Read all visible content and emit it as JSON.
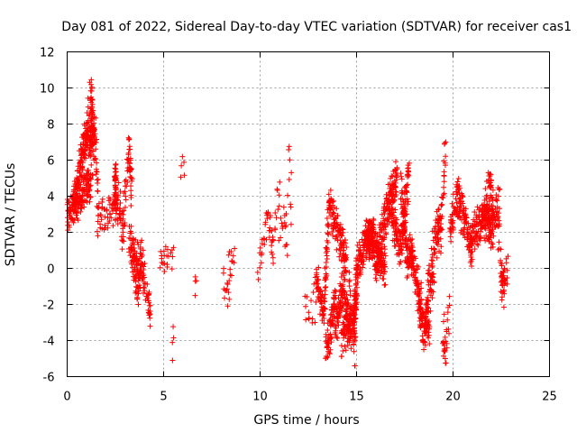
{
  "chart_data": {
    "type": "scatter",
    "title": "Day 081 of 2022, Sidereal Day-to-day VTEC variation (SDTVAR) for receiver cas1",
    "xlabel": "GPS time / hours",
    "ylabel": "SDTVAR / TECUs",
    "xlim": [
      0,
      25
    ],
    "ylim": [
      -6,
      12
    ],
    "xticks": [
      "0",
      "5",
      "10",
      "15",
      "20",
      "25"
    ],
    "yticks": [
      "-6",
      "-4",
      "-2",
      "0",
      "2",
      "4",
      "6",
      "8",
      "10",
      "12"
    ],
    "grid": true,
    "marker": "+",
    "color": "#ff0000",
    "series": [
      {
        "name": "SDTVAR",
        "segments": [
          [
            0.0,
            3.0,
            0.6,
            3.8,
            1.2,
            4.8,
            0.6,
            2.4,
            0.7,
            2.4,
            1.0,
            3.2
          ],
          [
            0.3,
            3.2,
            0.9,
            7.2,
            1.4,
            7.2,
            1.6,
            1.8,
            0.5,
            2.8,
            1.3,
            3.5
          ],
          [
            0.75,
            5.0,
            1.25,
            9.8,
            1.35,
            7.5,
            0.6,
            2.6,
            0.8,
            3.2,
            1.0,
            4.0
          ],
          [
            1.1,
            3.5,
            1.45,
            8.2,
            1.6,
            2.8,
            0.5,
            2.5,
            0.6,
            3.0,
            0.8,
            3.5
          ],
          [
            1.6,
            2.8,
            2.5,
            3.5,
            2.5,
            5.5,
            0.7,
            1.3,
            0.5,
            1.5,
            0.8,
            4.0
          ],
          [
            2.5,
            3.5,
            2.7,
            3.6,
            2.9,
            1.8,
            0.5,
            2.0,
            0.6,
            2.2,
            0.8,
            3.5
          ],
          [
            2.9,
            2.0,
            3.2,
            6.8,
            3.35,
            4.5,
            0.6,
            1.5,
            0.8,
            2.0,
            1.0,
            3.5
          ],
          [
            3.2,
            1.5,
            3.6,
            0.5,
            4.0,
            -0.5,
            0.5,
            1.8,
            0.7,
            2.0,
            0.8,
            3.0
          ],
          [
            3.35,
            1.0,
            3.6,
            -1.5,
            3.8,
            0.0,
            0.4,
            1.5,
            0.6,
            1.8,
            0.8,
            3.0
          ],
          [
            3.8,
            1.0,
            4.2,
            -2.0,
            4.3,
            -2.5,
            0.3,
            1.0,
            0.5,
            0.8,
            0.6,
            1.5
          ],
          [
            4.8,
            0.5,
            5.0,
            0.8,
            5.2,
            1.0,
            0.4,
            0.6,
            0.8,
            0.6,
            0.3,
            1.0
          ],
          [
            5.2,
            1.0,
            5.4,
            0.5,
            5.5,
            1.0,
            0.7,
            0.6,
            0.8,
            0.5,
            0.2,
            1.0
          ],
          [
            5.45,
            -4.3,
            5.5,
            -4.0,
            5.5,
            -4.4,
            0.3,
            0.3,
            0.3,
            0.3,
            0.1,
            1.0
          ],
          [
            5.85,
            5.0,
            6.0,
            6.2,
            6.05,
            5.5,
            0.7,
            0.6,
            0.8,
            0.5,
            0.2,
            1.0
          ],
          [
            6.6,
            -0.9,
            6.65,
            -0.9,
            6.7,
            -0.9,
            0.1,
            0.1,
            0.1,
            0.1,
            0.1,
            1.0
          ],
          [
            8.1,
            -0.8,
            8.3,
            -1.2,
            8.5,
            -0.8,
            0.7,
            0.6,
            0.8,
            0.5,
            0.3,
            1.0
          ],
          [
            8.3,
            0.3,
            8.5,
            0.6,
            8.7,
            0.6,
            0.3,
            0.3,
            0.3,
            0.3,
            0.2,
            1.0
          ],
          [
            9.9,
            -0.3,
            10.4,
            3.0,
            10.7,
            0.8,
            0.7,
            1.0,
            1.0,
            0.8,
            0.4,
            3.0
          ],
          [
            10.7,
            1.0,
            10.9,
            3.5,
            11.0,
            4.2,
            0.8,
            1.0,
            1.0,
            0.6,
            0.3,
            2.0
          ],
          [
            11.0,
            2.0,
            11.25,
            3.0,
            11.4,
            1.5,
            0.8,
            1.0,
            1.0,
            0.8,
            0.3,
            3.0
          ],
          [
            11.3,
            1.2,
            11.5,
            4.8,
            11.6,
            2.5,
            0.6,
            0.6,
            1.0,
            0.8,
            0.2,
            2.0
          ],
          [
            11.5,
            6.5,
            11.5,
            6.5,
            11.6,
            6.0,
            0.2,
            0.2,
            0.2,
            0.2,
            0.1,
            1.0
          ],
          [
            12.3,
            -2.6,
            12.6,
            -2.0,
            12.9,
            -1.8,
            0.6,
            0.5,
            0.6,
            0.5,
            0.2,
            1.0
          ],
          [
            12.9,
            -0.5,
            13.3,
            -2.5,
            13.6,
            4.0,
            0.8,
            0.8,
            1.2,
            1.0,
            1.2,
            5.0
          ],
          [
            13.4,
            -4.5,
            13.7,
            -3.2,
            13.9,
            -1.5,
            0.4,
            0.6,
            1.0,
            1.0,
            1.2,
            4.0
          ],
          [
            13.6,
            3.5,
            14.1,
            1.8,
            14.5,
            0.5,
            0.8,
            0.8,
            1.0,
            0.8,
            1.0,
            4.0
          ],
          [
            13.9,
            -3.5,
            14.3,
            -1.0,
            14.7,
            -3.5,
            0.8,
            0.8,
            1.2,
            0.8,
            1.2,
            4.0
          ],
          [
            14.2,
            -4.0,
            14.8,
            -3.0,
            15.0,
            -1.5,
            0.5,
            0.6,
            1.0,
            0.8,
            1.2,
            4.0
          ],
          [
            14.6,
            -0.5,
            14.9,
            -4.8,
            15.0,
            1.0,
            0.3,
            0.3,
            0.8,
            0.8,
            0.8,
            3.0
          ],
          [
            15.0,
            0.0,
            15.5,
            1.5,
            15.9,
            2.2,
            0.8,
            1.0,
            1.2,
            1.0,
            1.2,
            5.0
          ],
          [
            15.5,
            2.0,
            16.0,
            1.0,
            16.5,
            0.0,
            0.8,
            1.2,
            1.2,
            1.0,
            1.2,
            4.0
          ],
          [
            16.0,
            0.0,
            16.6,
            3.5,
            17.1,
            5.0,
            0.8,
            1.2,
            1.2,
            1.0,
            1.2,
            5.0
          ],
          [
            16.8,
            3.0,
            17.3,
            1.0,
            17.7,
            5.5,
            1.0,
            1.0,
            1.2,
            1.0,
            1.2,
            5.0
          ],
          [
            17.3,
            4.8,
            17.6,
            0.5,
            17.9,
            1.0,
            0.8,
            0.8,
            1.2,
            1.0,
            1.2,
            4.0
          ],
          [
            17.8,
            1.0,
            18.1,
            -0.5,
            18.4,
            -2.5,
            1.0,
            1.0,
            1.0,
            1.0,
            1.0,
            4.0
          ],
          [
            18.2,
            -2.0,
            18.5,
            -3.5,
            18.8,
            -3.0,
            1.0,
            1.0,
            1.0,
            1.0,
            1.0,
            4.0
          ],
          [
            18.5,
            -4.0,
            18.75,
            -1.0,
            19.0,
            -0.5,
            0.5,
            1.0,
            1.0,
            1.0,
            1.0,
            4.0
          ],
          [
            18.9,
            0.5,
            19.2,
            2.5,
            19.4,
            2.0,
            1.0,
            1.0,
            1.0,
            1.0,
            1.0,
            4.0
          ],
          [
            19.2,
            1.0,
            19.5,
            4.5,
            19.6,
            6.5,
            1.0,
            1.0,
            0.8,
            0.6,
            0.6,
            3.0
          ],
          [
            19.5,
            -3.5,
            19.6,
            -4.5,
            19.8,
            -2.5,
            0.5,
            0.4,
            0.8,
            0.8,
            0.8,
            3.0
          ],
          [
            19.85,
            2.0,
            20.0,
            3.0,
            20.3,
            4.0,
            0.8,
            1.0,
            1.0,
            0.8,
            0.8,
            3.0
          ],
          [
            20.2,
            4.0,
            20.6,
            2.5,
            21.0,
            1.0,
            1.0,
            1.0,
            1.0,
            1.0,
            1.0,
            5.0
          ],
          [
            20.9,
            1.5,
            21.4,
            2.5,
            21.8,
            3.5,
            1.0,
            1.0,
            1.0,
            1.0,
            1.0,
            5.0
          ],
          [
            21.6,
            2.0,
            21.9,
            4.8,
            22.1,
            3.0,
            1.0,
            1.0,
            1.2,
            1.0,
            1.0,
            4.0
          ],
          [
            21.8,
            2.5,
            22.0,
            2.0,
            22.4,
            4.0,
            1.0,
            1.2,
            1.2,
            1.0,
            1.0,
            4.0
          ],
          [
            22.3,
            3.0,
            22.5,
            -0.5,
            22.7,
            -0.8,
            0.8,
            0.8,
            1.0,
            0.6,
            0.6,
            3.0
          ],
          [
            22.5,
            0.0,
            22.6,
            -1.0,
            22.85,
            0.5,
            0.6,
            0.6,
            0.6,
            0.6,
            0.6,
            3.0
          ]
        ]
      }
    ]
  }
}
